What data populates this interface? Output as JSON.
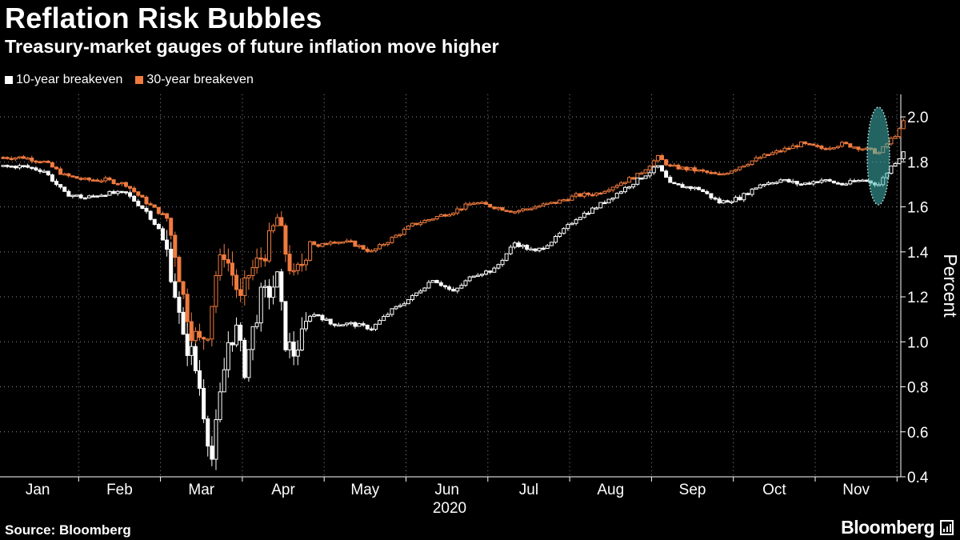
{
  "header": {
    "title": "Reflation Risk Bubbles",
    "subtitle": "Treasury-market gauges of future inflation move higher"
  },
  "footer": {
    "source": "Source: Bloomberg",
    "brand": "Bloomberg"
  },
  "colors": {
    "background": "#000000",
    "series_10y": "#ffffff",
    "series_30y": "#f07b3f",
    "highlight": "#3fb5b0",
    "grid": "#8a8a8a"
  },
  "chart_data": {
    "type": "candlestick",
    "title": "Reflation Risk Bubbles",
    "subtitle": "Treasury-market gauges of future inflation move higher",
    "ylabel": "Percent",
    "xlabel": "2020",
    "ylim": [
      0.4,
      2.1
    ],
    "yticks": [
      0.4,
      0.6,
      0.8,
      1.0,
      1.2,
      1.4,
      1.6,
      1.8,
      2.0
    ],
    "ytick_labels": [
      "0.4",
      "0.6",
      "0.8",
      "1.0",
      "1.2",
      "1.4",
      "1.6",
      "1.8",
      "2.0"
    ],
    "x_categories": [
      "Jan",
      "Feb",
      "Mar",
      "Apr",
      "May",
      "Jun",
      "Jul",
      "Aug",
      "Sep",
      "Oct",
      "Nov"
    ],
    "x_range_months": [
      0,
      11.35
    ],
    "grid": "dotted",
    "legend_position": "top-left",
    "annotation": "highlighted ellipse around latest readings",
    "series": [
      {
        "name": "10-year breakeven",
        "color": "#ffffff",
        "points": [
          [
            0.0,
            1.78
          ],
          [
            0.25,
            1.78
          ],
          [
            0.5,
            1.76
          ],
          [
            0.75,
            1.66
          ],
          [
            1.0,
            1.64
          ],
          [
            1.25,
            1.66
          ],
          [
            1.5,
            1.66
          ],
          [
            1.75,
            1.58
          ],
          [
            1.9,
            1.5
          ],
          [
            2.0,
            1.4
          ],
          [
            2.1,
            1.22
          ],
          [
            2.2,
            1.0
          ],
          [
            2.3,
            0.95
          ],
          [
            2.4,
            0.8
          ],
          [
            2.5,
            0.58
          ],
          [
            2.55,
            0.48
          ],
          [
            2.65,
            0.75
          ],
          [
            2.75,
            1.0
          ],
          [
            2.85,
            1.05
          ],
          [
            2.95,
            0.88
          ],
          [
            3.05,
            1.05
          ],
          [
            3.15,
            1.2
          ],
          [
            3.25,
            1.22
          ],
          [
            3.35,
            1.28
          ],
          [
            3.45,
            1.0
          ],
          [
            3.55,
            0.95
          ],
          [
            3.65,
            1.02
          ],
          [
            3.75,
            1.12
          ],
          [
            3.85,
            1.12
          ],
          [
            4.0,
            1.08
          ],
          [
            4.25,
            1.08
          ],
          [
            4.5,
            1.06
          ],
          [
            4.75,
            1.14
          ],
          [
            5.0,
            1.2
          ],
          [
            5.25,
            1.28
          ],
          [
            5.5,
            1.22
          ],
          [
            5.75,
            1.3
          ],
          [
            6.0,
            1.32
          ],
          [
            6.25,
            1.44
          ],
          [
            6.5,
            1.4
          ],
          [
            6.75,
            1.46
          ],
          [
            7.0,
            1.55
          ],
          [
            7.25,
            1.6
          ],
          [
            7.5,
            1.66
          ],
          [
            7.75,
            1.72
          ],
          [
            8.0,
            1.78
          ],
          [
            8.15,
            1.7
          ],
          [
            8.5,
            1.68
          ],
          [
            8.75,
            1.62
          ],
          [
            9.0,
            1.64
          ],
          [
            9.25,
            1.7
          ],
          [
            9.5,
            1.72
          ],
          [
            9.75,
            1.7
          ],
          [
            10.0,
            1.72
          ],
          [
            10.25,
            1.7
          ],
          [
            10.5,
            1.72
          ],
          [
            10.7,
            1.7
          ],
          [
            10.85,
            1.78
          ],
          [
            10.95,
            1.82
          ],
          [
            11.0,
            1.85
          ]
        ]
      },
      {
        "name": "30-year breakeven",
        "color": "#f07b3f",
        "points": [
          [
            0.0,
            1.82
          ],
          [
            0.25,
            1.82
          ],
          [
            0.5,
            1.8
          ],
          [
            0.75,
            1.74
          ],
          [
            1.0,
            1.72
          ],
          [
            1.25,
            1.72
          ],
          [
            1.5,
            1.7
          ],
          [
            1.75,
            1.62
          ],
          [
            2.0,
            1.55
          ],
          [
            2.1,
            1.4
          ],
          [
            2.2,
            1.2
          ],
          [
            2.3,
            1.05
          ],
          [
            2.4,
            1.0
          ],
          [
            2.5,
            1.05
          ],
          [
            2.6,
            1.3
          ],
          [
            2.7,
            1.4
          ],
          [
            2.8,
            1.3
          ],
          [
            2.9,
            1.18
          ],
          [
            3.0,
            1.3
          ],
          [
            3.2,
            1.4
          ],
          [
            3.35,
            1.55
          ],
          [
            3.45,
            1.4
          ],
          [
            3.55,
            1.28
          ],
          [
            3.65,
            1.35
          ],
          [
            3.75,
            1.45
          ],
          [
            3.85,
            1.42
          ],
          [
            4.0,
            1.45
          ],
          [
            4.25,
            1.44
          ],
          [
            4.5,
            1.4
          ],
          [
            4.75,
            1.46
          ],
          [
            5.0,
            1.52
          ],
          [
            5.25,
            1.55
          ],
          [
            5.5,
            1.58
          ],
          [
            5.75,
            1.62
          ],
          [
            6.0,
            1.6
          ],
          [
            6.25,
            1.58
          ],
          [
            6.5,
            1.6
          ],
          [
            6.75,
            1.62
          ],
          [
            7.0,
            1.65
          ],
          [
            7.25,
            1.66
          ],
          [
            7.5,
            1.7
          ],
          [
            7.75,
            1.74
          ],
          [
            8.0,
            1.82
          ],
          [
            8.15,
            1.78
          ],
          [
            8.5,
            1.76
          ],
          [
            8.75,
            1.74
          ],
          [
            9.0,
            1.78
          ],
          [
            9.25,
            1.82
          ],
          [
            9.5,
            1.85
          ],
          [
            9.75,
            1.88
          ],
          [
            10.0,
            1.86
          ],
          [
            10.25,
            1.88
          ],
          [
            10.5,
            1.86
          ],
          [
            10.7,
            1.84
          ],
          [
            10.85,
            1.9
          ],
          [
            10.95,
            1.94
          ],
          [
            11.0,
            1.98
          ]
        ]
      }
    ]
  }
}
